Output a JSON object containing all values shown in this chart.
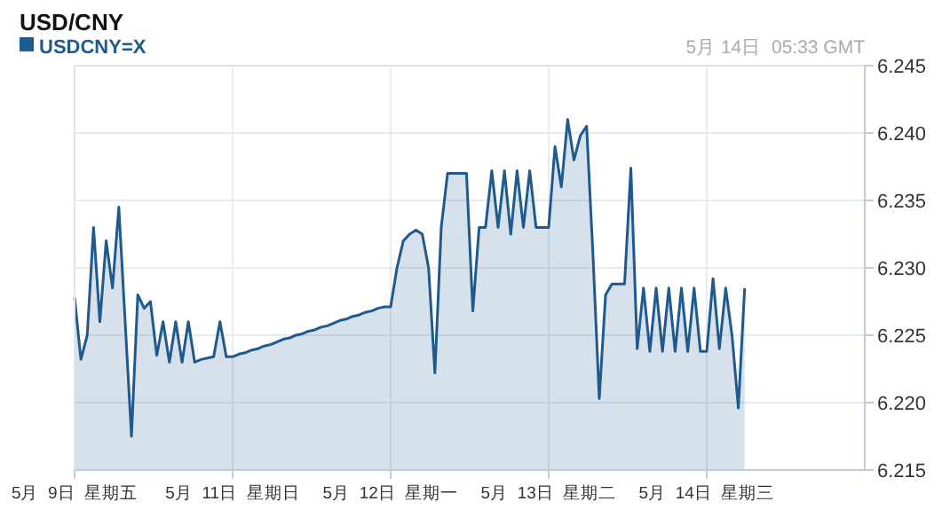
{
  "chart_data": {
    "type": "area",
    "title": "USD/CNY",
    "annotations": [
      "5月 14日  05:33 GMT"
    ],
    "categories": [
      "5月  9日  星期五",
      null,
      null,
      null,
      null,
      null,
      null,
      null,
      null,
      null,
      null,
      null,
      null,
      null,
      null,
      null,
      null,
      null,
      null,
      null,
      null,
      null,
      null,
      null,
      null,
      "5月  11日  星期日",
      null,
      null,
      null,
      null,
      null,
      null,
      null,
      null,
      null,
      null,
      null,
      null,
      null,
      null,
      null,
      null,
      null,
      null,
      null,
      null,
      null,
      null,
      null,
      null,
      "5月  12日  星期一",
      null,
      null,
      null,
      null,
      null,
      null,
      null,
      null,
      null,
      null,
      null,
      null,
      null,
      null,
      null,
      null,
      null,
      null,
      null,
      null,
      null,
      null,
      null,
      null,
      "5月  13日  星期二",
      null,
      null,
      null,
      null,
      null,
      null,
      null,
      null,
      null,
      null,
      null,
      null,
      null,
      null,
      null,
      null,
      null,
      null,
      null,
      null,
      null,
      null,
      null,
      null,
      "5月  14日  星期三",
      null,
      null,
      null,
      null,
      null,
      null,
      null,
      null,
      null,
      null,
      null,
      null,
      null,
      null,
      null,
      null,
      null,
      null,
      null,
      null,
      null,
      null,
      null,
      null
    ],
    "ylim": [
      6.215,
      6.245
    ],
    "yticks": [
      {
        "value": 6.215,
        "label": "6.215"
      },
      {
        "value": 6.22,
        "label": "6.220"
      },
      {
        "value": 6.225,
        "label": "6.225"
      },
      {
        "value": 6.23,
        "label": "6.230"
      },
      {
        "value": 6.235,
        "label": "6.235"
      },
      {
        "value": 6.24,
        "label": "6.240"
      },
      {
        "value": 6.245,
        "label": "6.245"
      }
    ],
    "grid": true,
    "legend": "top left",
    "series": [
      {
        "name": "USDCNY=X",
        "color": "#1f5a8f",
        "values": [
          6.2278,
          6.2232,
          6.225,
          6.233,
          6.226,
          6.232,
          6.2285,
          6.2345,
          6.226,
          6.2175,
          6.228,
          6.227,
          6.2275,
          6.2235,
          6.226,
          6.223,
          6.226,
          6.223,
          6.226,
          6.223,
          6.2232,
          6.2233,
          6.2234,
          6.226,
          6.2234,
          6.2234,
          6.2236,
          6.2237,
          6.2239,
          6.224,
          6.2242,
          6.2243,
          6.2245,
          6.2247,
          6.2248,
          6.225,
          6.2251,
          6.2253,
          6.2254,
          6.2256,
          6.2257,
          6.2259,
          6.2261,
          6.2262,
          6.2264,
          6.2265,
          6.2267,
          6.2268,
          6.227,
          6.2271,
          6.2271,
          6.23,
          6.232,
          6.2325,
          6.2328,
          6.2325,
          6.23,
          6.2222,
          6.233,
          6.237,
          6.237,
          6.237,
          6.237,
          6.2268,
          6.233,
          6.233,
          6.2372,
          6.233,
          6.2372,
          6.2325,
          6.2372,
          6.233,
          6.2372,
          6.233,
          6.233,
          6.233,
          6.239,
          6.236,
          6.241,
          6.238,
          6.2398,
          6.2405,
          6.231,
          6.2203,
          6.228,
          6.2288,
          6.2288,
          6.2288,
          6.2374,
          6.224,
          6.2285,
          6.2238,
          6.2285,
          6.2238,
          6.2285,
          6.2238,
          6.2285,
          6.2238,
          6.2285,
          6.2238,
          6.2238,
          6.2292,
          6.224,
          6.2285,
          6.225,
          6.2196,
          6.2285,
          null,
          null,
          null,
          null,
          null,
          null,
          null,
          null,
          null,
          null,
          null,
          null,
          null,
          null,
          null,
          null,
          null,
          null
        ]
      }
    ]
  }
}
